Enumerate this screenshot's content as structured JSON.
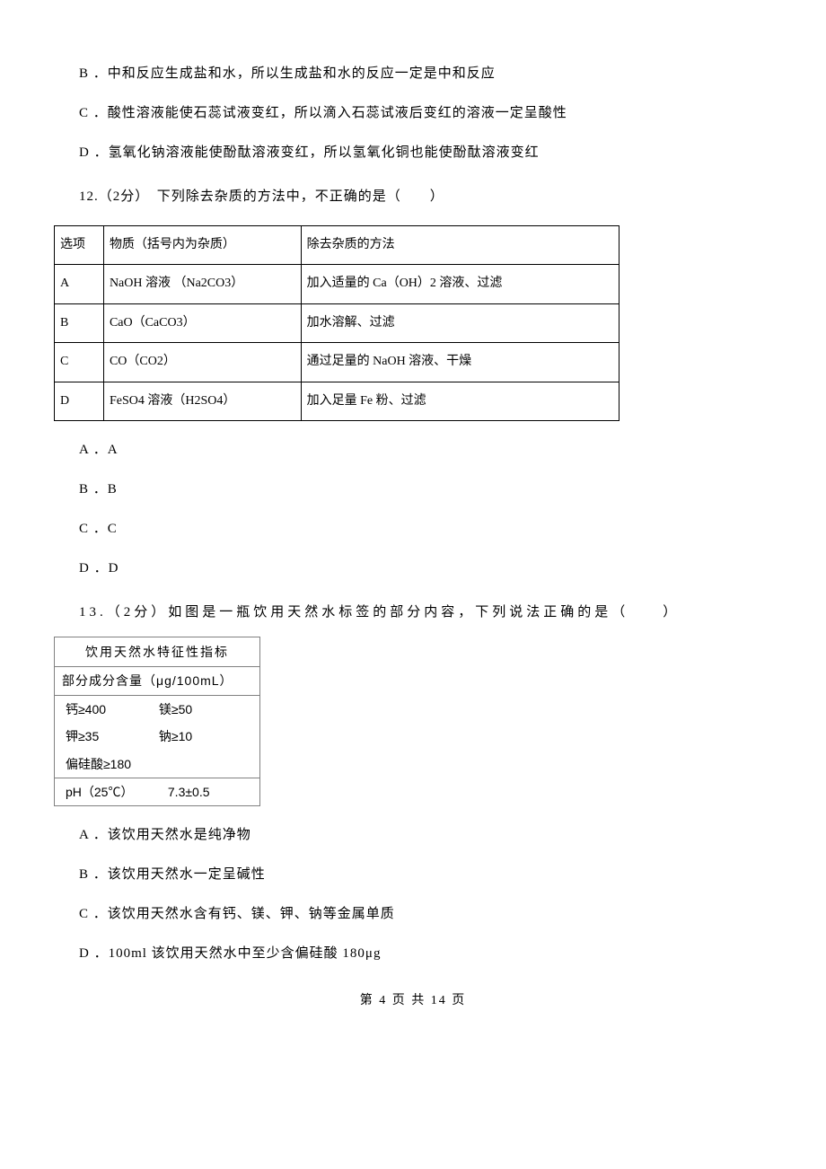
{
  "options11": {
    "b": "B ．中和反应生成盐和水，所以生成盐和水的反应一定是中和反应",
    "c": "C ．酸性溶液能使石蕊试液变红，所以滴入石蕊试液后变红的溶液一定呈酸性",
    "d": "D ．氢氧化钠溶液能使酚酞溶液变红，所以氢氧化铜也能使酚酞溶液变红"
  },
  "question12": {
    "text": "12.（2分）　下列除去杂质的方法中，不正确的是（　　）",
    "table": {
      "header": {
        "col1": "选项",
        "col2": "物质（括号内为杂质）",
        "col3": "除去杂质的方法"
      },
      "rows": [
        {
          "col1": "A",
          "col2": "NaOH 溶液 （Na2CO3）",
          "col3": "加入适量的 Ca（OH）2 溶液、过滤"
        },
        {
          "col1": "B",
          "col2": "CaO（CaCO3）",
          "col3": "加水溶解、过滤"
        },
        {
          "col1": "C",
          "col2": "CO（CO2）",
          "col3": "通过足量的 NaOH 溶液、干燥"
        },
        {
          "col1": "D",
          "col2": "FeSO4 溶液（H2SO4）",
          "col3": "加入足量 Fe 粉、过滤"
        }
      ]
    },
    "options": {
      "a": "A ．A",
      "b": "B ．B",
      "c": "C ．C",
      "d": "D ．D"
    }
  },
  "question13": {
    "text": "13.（2分）如图是一瓶饮用天然水标签的部分内容，下列说法正确的是（　　）",
    "water_label": {
      "title": "饮用天然水特征性指标",
      "subtitle": "部分成分含量（μg/100mL）",
      "calcium_label": "钙≥400",
      "magnesium_label": "镁≥50",
      "potassium_label": "钾≥35",
      "sodium_label": "钠≥10",
      "silicate_label": "偏硅酸≥180",
      "ph_label": "pH（25℃）",
      "ph_value": "7.3±0.5"
    },
    "options": {
      "a": "A ．该饮用天然水是纯净物",
      "b": "B ．该饮用天然水一定呈碱性",
      "c": "C ．该饮用天然水含有钙、镁、钾、钠等金属单质",
      "d": "D ．100ml 该饮用天然水中至少含偏硅酸 180μg"
    }
  },
  "footer": "第 4 页 共 14 页"
}
